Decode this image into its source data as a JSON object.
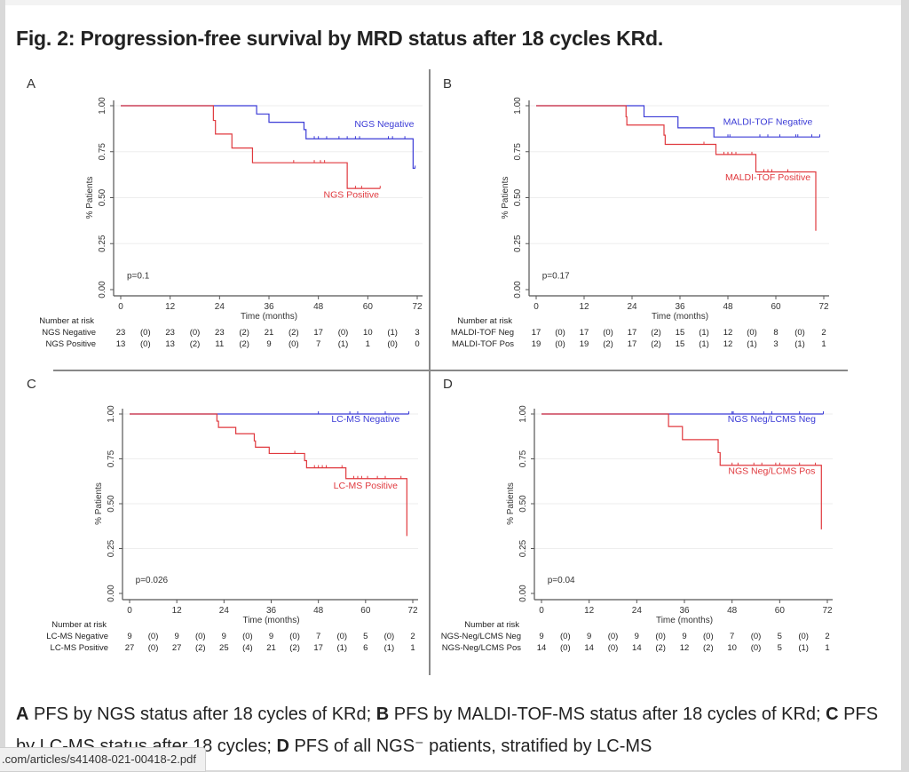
{
  "title": "Fig. 2: Progression-free survival by MRD status after 18 cycles KRd.",
  "caption": {
    "parts": [
      {
        "bold": "A",
        "text": " PFS by NGS status after 18 cycles of KRd; "
      },
      {
        "bold": "B",
        "text": " PFS by MALDI-TOF-MS status after 18 cycles of KRd; "
      },
      {
        "bold": "C",
        "text": " PFS by LC-MS status after 18 cycles; "
      },
      {
        "bold": "D",
        "text": " PFS of all NGS⁻ patients, stratified by LC-MS"
      }
    ]
  },
  "status_bar": {
    "url": ".com/articles/s41408-021-00418-2.pdf"
  },
  "colors": {
    "negative": "#3b3bd6",
    "positive": "#e0393e",
    "axis": "#555555",
    "grid": "#eeeeee"
  },
  "chart_data": [
    {
      "panel": "A",
      "type": "line",
      "xlabel": "Time (months)",
      "ylabel": "% Patients",
      "xticks": [
        0,
        12,
        24,
        36,
        48,
        60,
        72
      ],
      "yticks": [
        "0.00",
        "0.25",
        "0.50",
        "0.75",
        "1.00"
      ],
      "xlim": [
        0,
        72
      ],
      "ylim": [
        0,
        1
      ],
      "p_value": "p=0.1",
      "series": [
        {
          "name": "NGS Negative",
          "group": "negative",
          "steps": [
            [
              0,
              1.0
            ],
            [
              33,
              0.955
            ],
            [
              36,
              0.91
            ],
            [
              44.5,
              0.87
            ],
            [
              45,
              0.82
            ],
            [
              71,
              0.66
            ]
          ],
          "end": 71.5,
          "censor": [
            [
              47,
              0.82
            ],
            [
              48,
              0.82
            ],
            [
              50,
              0.82
            ],
            [
              53,
              0.82
            ],
            [
              55,
              0.82
            ],
            [
              57,
              0.82
            ],
            [
              58,
              0.82
            ],
            [
              65,
              0.82
            ],
            [
              66,
              0.82
            ],
            [
              69,
              0.82
            ],
            [
              71.5,
              0.66
            ]
          ],
          "label_pos": [
            64,
            0.885
          ]
        },
        {
          "name": "NGS Positive",
          "group": "positive",
          "steps": [
            [
              0,
              1.0
            ],
            [
              22.5,
              0.92
            ],
            [
              23,
              0.846
            ],
            [
              27,
              0.77
            ],
            [
              32,
              0.69
            ],
            [
              55,
              0.55
            ]
          ],
          "end": 63,
          "censor": [
            [
              42,
              0.69
            ],
            [
              47,
              0.69
            ],
            [
              48.5,
              0.69
            ],
            [
              49.5,
              0.69
            ],
            [
              57,
              0.55
            ],
            [
              58.5,
              0.55
            ],
            [
              63,
              0.55
            ]
          ],
          "label_pos": [
            56,
            0.5
          ]
        }
      ],
      "risk_table": {
        "header": "Number at risk",
        "rows": [
          {
            "label": "NGS Negative",
            "values": [
              "23",
              "(0)",
              "23",
              "(0)",
              "23",
              "(2)",
              "21",
              "(2)",
              "17",
              "(0)",
              "10",
              "(1)",
              "3"
            ]
          },
          {
            "label": "NGS Positive",
            "values": [
              "13",
              "(0)",
              "13",
              "(2)",
              "11",
              "(2)",
              "9",
              "(0)",
              "7",
              "(1)",
              "1",
              "(0)",
              "0"
            ]
          }
        ]
      }
    },
    {
      "panel": "B",
      "type": "line",
      "xlabel": "Time (months)",
      "ylabel": "% Patients",
      "xticks": [
        0,
        12,
        24,
        36,
        48,
        60,
        72
      ],
      "yticks": [
        "0.00",
        "0.25",
        "0.50",
        "0.75",
        "1.00"
      ],
      "xlim": [
        0,
        72
      ],
      "ylim": [
        0,
        1
      ],
      "p_value": "p=0.17",
      "series": [
        {
          "name": "MALDI-TOF Negative",
          "group": "negative",
          "steps": [
            [
              0,
              1.0
            ],
            [
              27,
              0.94
            ],
            [
              35.5,
              0.88
            ],
            [
              44.5,
              0.83
            ]
          ],
          "end": 71,
          "censor": [
            [
              48,
              0.83
            ],
            [
              48.5,
              0.83
            ],
            [
              56,
              0.83
            ],
            [
              58,
              0.83
            ],
            [
              61,
              0.83
            ],
            [
              65,
              0.83
            ],
            [
              65.5,
              0.83
            ],
            [
              69,
              0.83
            ],
            [
              71,
              0.83
            ]
          ],
          "label_pos": [
            58,
            0.895
          ]
        },
        {
          "name": "MALDI-TOF Positive",
          "group": "positive",
          "steps": [
            [
              0,
              1.0
            ],
            [
              22.5,
              0.94
            ],
            [
              22.7,
              0.895
            ],
            [
              32,
              0.84
            ],
            [
              32.3,
              0.79
            ],
            [
              45,
              0.735
            ],
            [
              55,
              0.64
            ],
            [
              70,
              0.32
            ]
          ],
          "end": 70,
          "censor": [
            [
              42,
              0.79
            ],
            [
              47,
              0.735
            ],
            [
              48,
              0.735
            ],
            [
              49,
              0.735
            ],
            [
              50,
              0.735
            ],
            [
              54,
              0.735
            ],
            [
              57,
              0.64
            ],
            [
              58,
              0.64
            ],
            [
              59,
              0.64
            ],
            [
              63,
              0.64
            ]
          ],
          "label_pos": [
            58,
            0.595
          ]
        }
      ],
      "risk_table": {
        "header": "Number at risk",
        "rows": [
          {
            "label": "MALDI-TOF Neg",
            "values": [
              "17",
              "(0)",
              "17",
              "(0)",
              "17",
              "(2)",
              "15",
              "(1)",
              "12",
              "(0)",
              "8",
              "(0)",
              "2"
            ]
          },
          {
            "label": "MALDI-TOF Pos",
            "values": [
              "19",
              "(0)",
              "19",
              "(2)",
              "17",
              "(2)",
              "15",
              "(1)",
              "12",
              "(1)",
              "3",
              "(1)",
              "1"
            ]
          }
        ]
      }
    },
    {
      "panel": "C",
      "type": "line",
      "xlabel": "Time (months)",
      "ylabel": "% Patients",
      "xticks": [
        0,
        12,
        24,
        36,
        48,
        60,
        72
      ],
      "yticks": [
        "0.00",
        "0.25",
        "0.50",
        "0.75",
        "1.00"
      ],
      "xlim": [
        0,
        72
      ],
      "ylim": [
        0,
        1
      ],
      "p_value": "p=0.026",
      "series": [
        {
          "name": "LC-MS Negative",
          "group": "negative",
          "steps": [
            [
              0,
              1.0
            ]
          ],
          "end": 71,
          "censor": [
            [
              48,
              1.0
            ],
            [
              56,
              1.0
            ],
            [
              58,
              1.0
            ],
            [
              65,
              1.0
            ],
            [
              71,
              1.0
            ]
          ],
          "label_pos": [
            60,
            0.955
          ]
        },
        {
          "name": "LC-MS Positive",
          "group": "positive",
          "steps": [
            [
              0,
              1.0
            ],
            [
              22.2,
              0.96
            ],
            [
              22.6,
              0.925
            ],
            [
              27,
              0.89
            ],
            [
              31.7,
              0.85
            ],
            [
              32,
              0.815
            ],
            [
              35.5,
              0.78
            ],
            [
              44.5,
              0.74
            ],
            [
              45,
              0.7
            ],
            [
              55,
              0.64
            ],
            [
              70.5,
              0.32
            ]
          ],
          "end": 70.5,
          "censor": [
            [
              42,
              0.78
            ],
            [
              47,
              0.7
            ],
            [
              48,
              0.7
            ],
            [
              49,
              0.7
            ],
            [
              50,
              0.7
            ],
            [
              54,
              0.7
            ],
            [
              57,
              0.64
            ],
            [
              58,
              0.64
            ],
            [
              59,
              0.64
            ],
            [
              60.5,
              0.64
            ],
            [
              63,
              0.64
            ],
            [
              65,
              0.64
            ],
            [
              69,
              0.64
            ]
          ],
          "label_pos": [
            60,
            0.585
          ]
        }
      ],
      "risk_table": {
        "header": "Number at risk",
        "rows": [
          {
            "label": "LC-MS Negative",
            "values": [
              "9",
              "(0)",
              "9",
              "(0)",
              "9",
              "(0)",
              "9",
              "(0)",
              "7",
              "(0)",
              "5",
              "(0)",
              "2"
            ]
          },
          {
            "label": "LC-MS Positive",
            "values": [
              "27",
              "(0)",
              "27",
              "(2)",
              "25",
              "(4)",
              "21",
              "(2)",
              "17",
              "(1)",
              "6",
              "(1)",
              "1"
            ]
          }
        ]
      }
    },
    {
      "panel": "D",
      "type": "line",
      "xlabel": "Time (months)",
      "ylabel": "% Patients",
      "xticks": [
        0,
        12,
        24,
        36,
        48,
        60,
        72
      ],
      "yticks": [
        "0.00",
        "0.25",
        "0.50",
        "0.75",
        "1.00"
      ],
      "xlim": [
        0,
        72
      ],
      "ylim": [
        0,
        1
      ],
      "p_value": "p=0.04",
      "series": [
        {
          "name": "NGS Neg/LCMS Neg",
          "group": "negative",
          "steps": [
            [
              0,
              1.0
            ]
          ],
          "end": 71,
          "censor": [
            [
              48,
              1.0
            ],
            [
              48.3,
              1.0
            ],
            [
              56,
              1.0
            ],
            [
              58,
              1.0
            ],
            [
              65,
              1.0
            ],
            [
              71,
              1.0
            ]
          ],
          "label_pos": [
            58,
            0.955
          ]
        },
        {
          "name": "NGS Neg/LCMS Pos",
          "group": "positive",
          "steps": [
            [
              0,
              1.0
            ],
            [
              32,
              0.93
            ],
            [
              35.5,
              0.857
            ],
            [
              44.5,
              0.785
            ],
            [
              45,
              0.714
            ],
            [
              70.5,
              0.357
            ]
          ],
          "end": 70.5,
          "censor": [
            [
              48,
              0.714
            ],
            [
              49.5,
              0.714
            ],
            [
              53.5,
              0.714
            ],
            [
              55.5,
              0.714
            ],
            [
              59,
              0.714
            ],
            [
              60,
              0.714
            ],
            [
              65,
              0.714
            ],
            [
              69,
              0.714
            ]
          ],
          "label_pos": [
            58,
            0.665
          ]
        }
      ],
      "risk_table": {
        "header": "Number at risk",
        "rows": [
          {
            "label": "NGS-Neg/LCMS Neg",
            "values": [
              "9",
              "(0)",
              "9",
              "(0)",
              "9",
              "(0)",
              "9",
              "(0)",
              "7",
              "(0)",
              "5",
              "(0)",
              "2"
            ]
          },
          {
            "label": "NGS-Neg/LCMS Pos",
            "values": [
              "14",
              "(0)",
              "14",
              "(0)",
              "14",
              "(2)",
              "12",
              "(2)",
              "10",
              "(0)",
              "5",
              "(1)",
              "1"
            ]
          }
        ]
      }
    }
  ]
}
